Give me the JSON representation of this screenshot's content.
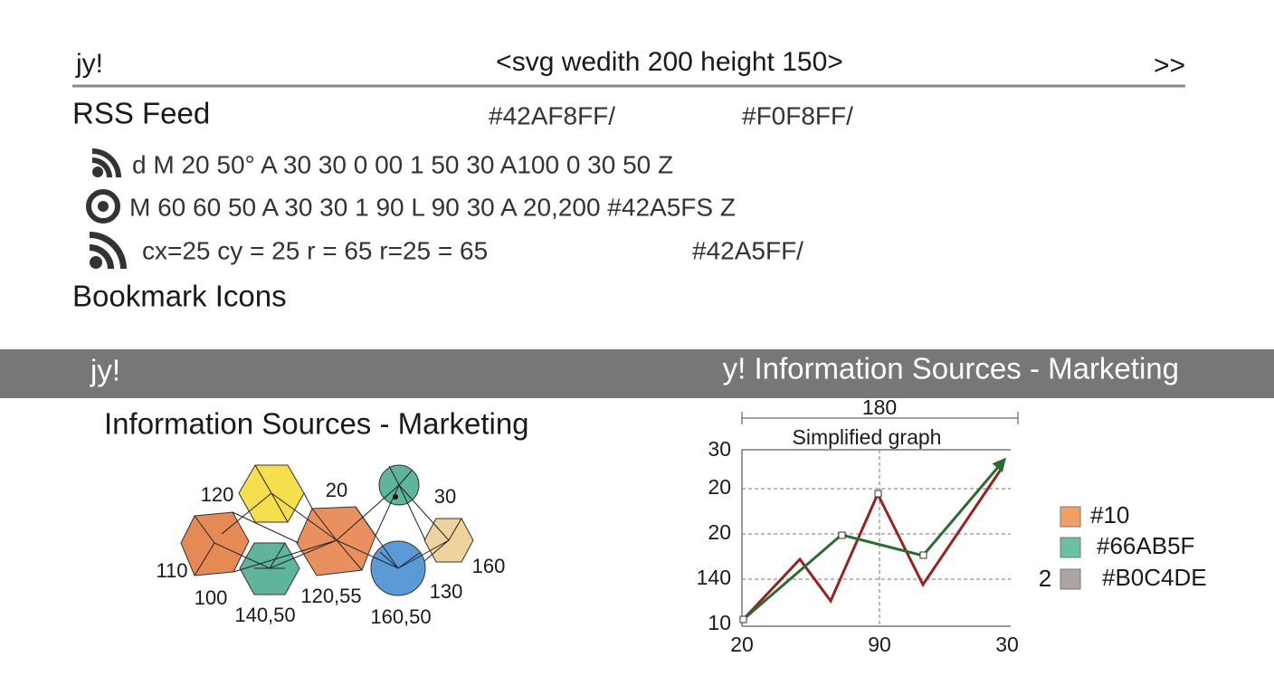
{
  "header": {
    "left": "jy!",
    "center": "<svg wedith 200 height 150>",
    "right": ">>"
  },
  "rss": {
    "title": "RSS Feed",
    "colors": [
      "#42AF8FF/",
      "#F0F8FF/"
    ],
    "rows": [
      {
        "text": "d M 20 50° A 30 30 0 00 1 50 30 A100 0 30 50 Z"
      },
      {
        "text": "M 60 60 50 A 30 30 1 90 L 90 30 A 20,200 #42A5FS Z"
      },
      {
        "text": "cx=25 cy = 25 r = 65 r=25 = 65",
        "extra": "#42A5FF/"
      }
    ],
    "footer": "Bookmark Icons"
  },
  "band": {
    "left": "jy!",
    "right": "y! Information Sources - Marketing"
  },
  "diagram": {
    "title": "Information Sources - Marketing",
    "labels": [
      "120",
      "20",
      "30",
      "110",
      "100",
      "140,50",
      "120,55",
      "160,50",
      "130",
      "160"
    ]
  },
  "graph": {
    "measure": "180",
    "title": "Simplified graph",
    "y_labels": [
      "30",
      "20",
      "20",
      "140",
      "10"
    ],
    "x_labels": [
      "20",
      "90",
      "30"
    ],
    "legend": [
      {
        "label": "#10"
      },
      {
        "label": "#66AB5F"
      },
      {
        "prefix": "2",
        "label": "#B0C4DE"
      }
    ]
  }
}
